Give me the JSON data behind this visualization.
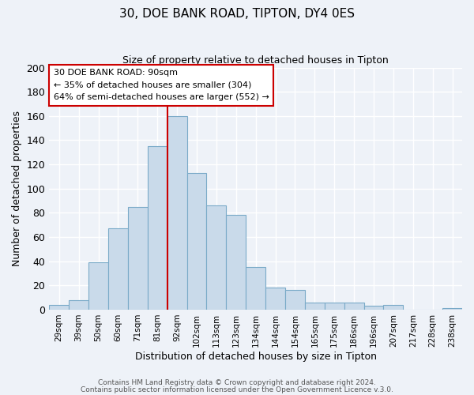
{
  "title": "30, DOE BANK ROAD, TIPTON, DY4 0ES",
  "subtitle": "Size of property relative to detached houses in Tipton",
  "xlabel": "Distribution of detached houses by size in Tipton",
  "ylabel": "Number of detached properties",
  "bar_labels": [
    "29sqm",
    "39sqm",
    "50sqm",
    "60sqm",
    "71sqm",
    "81sqm",
    "92sqm",
    "102sqm",
    "113sqm",
    "123sqm",
    "134sqm",
    "144sqm",
    "154sqm",
    "165sqm",
    "175sqm",
    "186sqm",
    "196sqm",
    "207sqm",
    "217sqm",
    "228sqm",
    "238sqm"
  ],
  "bar_values": [
    4,
    8,
    39,
    67,
    85,
    135,
    160,
    113,
    86,
    78,
    35,
    18,
    16,
    6,
    6,
    6,
    3,
    4,
    0,
    0,
    1
  ],
  "bar_color": "#c9daea",
  "bar_edge_color": "#7aaac8",
  "vline_color": "#cc0000",
  "ylim": [
    0,
    200
  ],
  "yticks": [
    0,
    20,
    40,
    60,
    80,
    100,
    120,
    140,
    160,
    180,
    200
  ],
  "annotation_title": "30 DOE BANK ROAD: 90sqm",
  "annotation_line1": "← 35% of detached houses are smaller (304)",
  "annotation_line2": "64% of semi-detached houses are larger (552) →",
  "annotation_box_facecolor": "#ffffff",
  "annotation_box_edgecolor": "#cc0000",
  "footer1": "Contains HM Land Registry data © Crown copyright and database right 2024.",
  "footer2": "Contains public sector information licensed under the Open Government Licence v.3.0.",
  "bg_color": "#eef2f8",
  "grid_color": "#ffffff",
  "vline_index": 6
}
